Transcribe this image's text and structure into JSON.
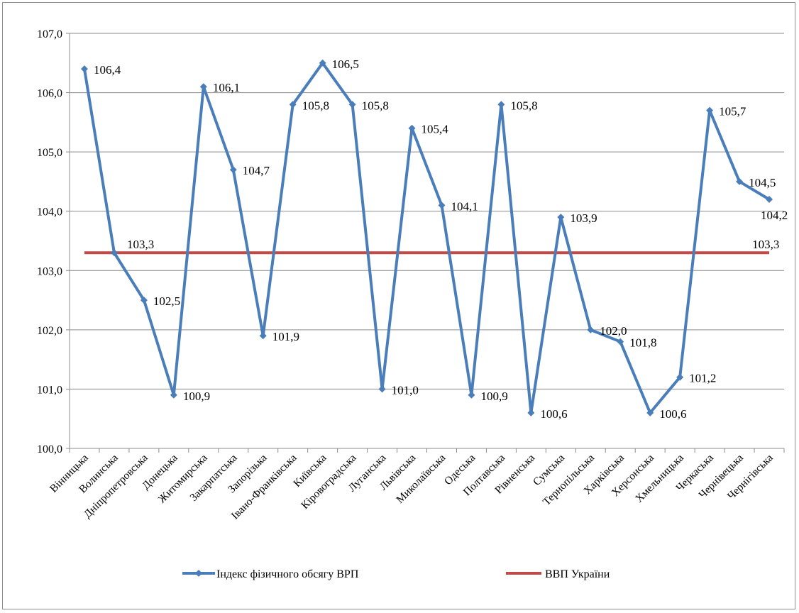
{
  "chart_data": {
    "type": "line",
    "title": "",
    "xlabel": "",
    "ylabel": "",
    "ylim": [
      100.0,
      107.0
    ],
    "yticks": [
      "100,0",
      "101,0",
      "102,0",
      "103,0",
      "104,0",
      "105,0",
      "106,0",
      "107,0"
    ],
    "grid": true,
    "legend_position": "bottom",
    "categories": [
      "Вінницька",
      "Волинська",
      "Дніпропетровська",
      "Донецька",
      "Житомирська",
      "Закарпатська",
      "Запорізька",
      "Івано-Франківська",
      "Київська",
      "Кіровоградська",
      "Луганська",
      "Львівська",
      "Миколаївська",
      "Одеська",
      "Полтавська",
      "Рівненська",
      "Сумська",
      "Тернопільська",
      "Харківська",
      "Херсонська",
      "Хмельницька",
      "Черкаська",
      "Чернівецька",
      "Чернігівська"
    ],
    "series": [
      {
        "name": "Індекс фізичного обсягу ВРП",
        "color": "#4a7ebb",
        "values": [
          106.4,
          103.3,
          102.5,
          100.9,
          106.1,
          104.7,
          101.9,
          105.8,
          106.5,
          105.8,
          101.0,
          105.4,
          104.1,
          100.9,
          105.8,
          100.6,
          103.9,
          102.0,
          101.8,
          100.6,
          101.2,
          105.7,
          104.5,
          104.2
        ],
        "labels": [
          "106,4",
          "",
          "102,5",
          "100,9",
          "106,1",
          "104,7",
          "101,9",
          "105,8",
          "106,5",
          "105,8",
          "101,0",
          "105,4",
          "104,1",
          "100,9",
          "105,8",
          "100,6",
          "103,9",
          "102,0",
          "101,8",
          "100,6",
          "101,2",
          "105,7",
          "104,5",
          "104,2"
        ]
      },
      {
        "name": "ВВП України",
        "color": "#be4b48",
        "values": [
          103.3,
          103.3,
          103.3,
          103.3,
          103.3,
          103.3,
          103.3,
          103.3,
          103.3,
          103.3,
          103.3,
          103.3,
          103.3,
          103.3,
          103.3,
          103.3,
          103.3,
          103.3,
          103.3,
          103.3,
          103.3,
          103.3,
          103.3,
          103.3
        ],
        "labels": [
          "",
          "103,3",
          "",
          "",
          "",
          "",
          "",
          "",
          "",
          "",
          "",
          "",
          "",
          "",
          "",
          "",
          "",
          "",
          "",
          "",
          "",
          "",
          "103,3",
          ""
        ]
      }
    ]
  }
}
